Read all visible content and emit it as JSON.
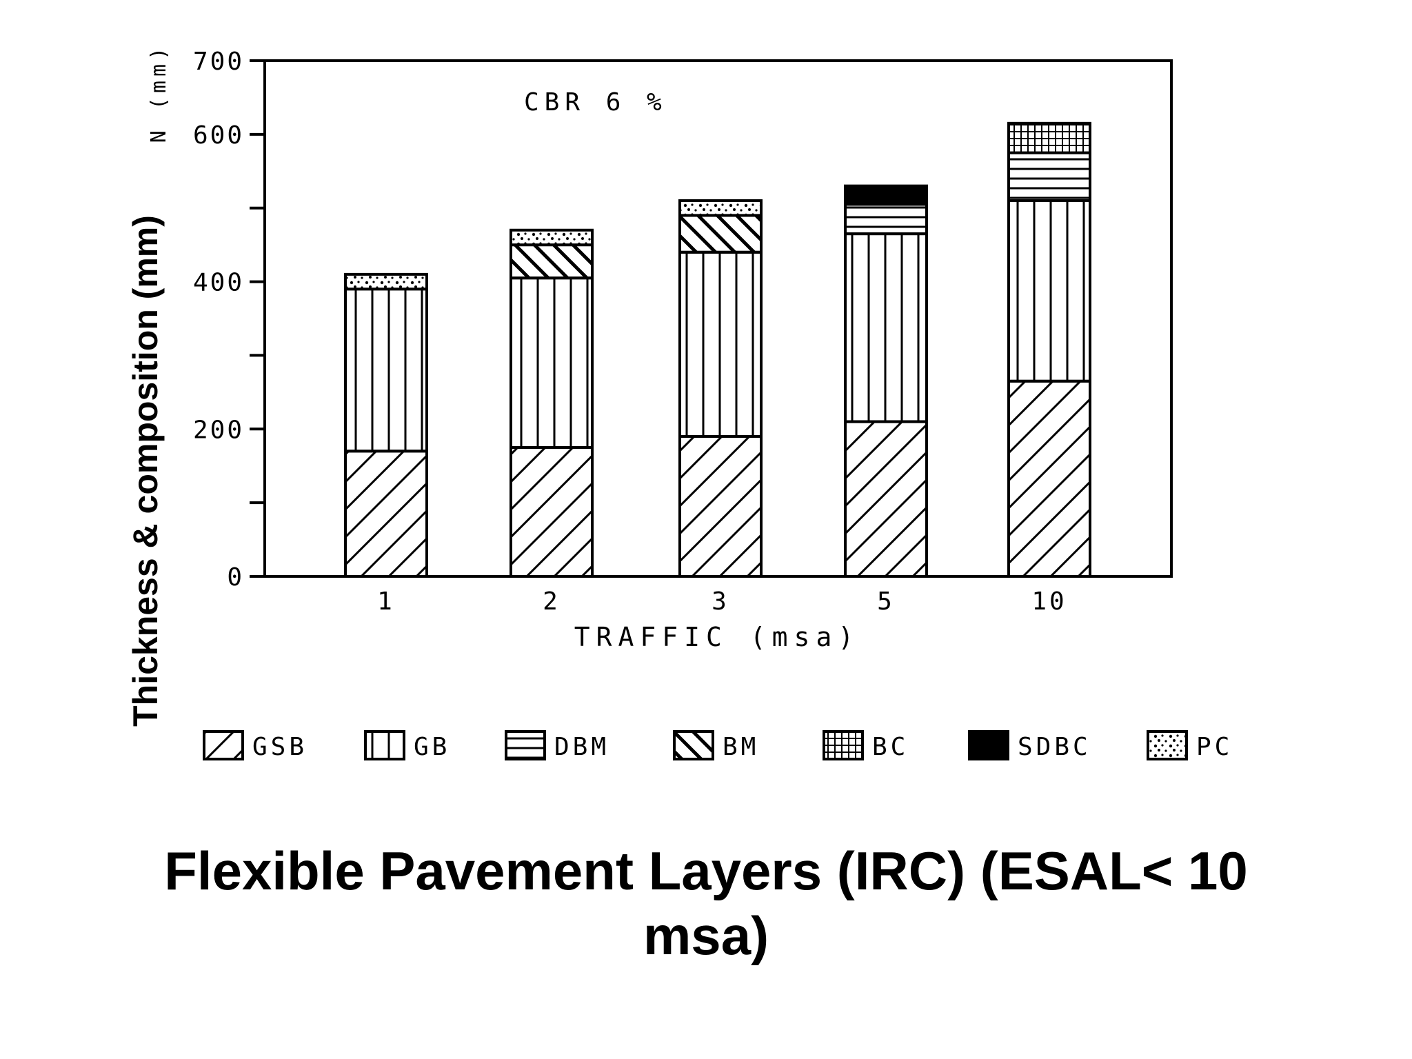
{
  "caption": {
    "line1": "Flexible Pavement Layers (IRC) (ESAL< 10",
    "line2": "msa)"
  },
  "chart_data": {
    "type": "bar",
    "stacked": true,
    "annotation": "CBR 6 %",
    "ylabel": "Thickness & composition (mm)",
    "ylabel_top": "N (mm)",
    "xlabel": "TRAFFIC (msa)",
    "categories": [
      "1",
      "2",
      "3",
      "5",
      "10"
    ],
    "y_ticks": [
      "0",
      "200",
      "400",
      "600",
      "700"
    ],
    "ylim": [
      0,
      700
    ],
    "legend_position": "bottom",
    "legend": [
      "GSB",
      "GB",
      "DBM",
      "BM",
      "BC",
      "SDBC",
      "PC"
    ],
    "series": [
      {
        "name": "GSB",
        "pattern": "diagonal-hatch",
        "values": [
          170,
          175,
          190,
          210,
          265
        ]
      },
      {
        "name": "GB",
        "pattern": "vertical-lines",
        "values": [
          220,
          230,
          250,
          255,
          245
        ]
      },
      {
        "name": "DBM",
        "pattern": "horizontal-lines",
        "values": [
          0,
          0,
          0,
          40,
          65
        ]
      },
      {
        "name": "BM",
        "pattern": "back-diagonal-hatch",
        "values": [
          0,
          45,
          50,
          0,
          0
        ]
      },
      {
        "name": "BC",
        "pattern": "grid",
        "values": [
          0,
          0,
          0,
          0,
          40
        ]
      },
      {
        "name": "SDBC",
        "pattern": "solid",
        "values": [
          0,
          0,
          0,
          25,
          0
        ]
      },
      {
        "name": "PC",
        "pattern": "speckle",
        "values": [
          20,
          20,
          20,
          0,
          0
        ]
      }
    ],
    "colors": {
      "ink": "#000000",
      "background": "#ffffff"
    }
  }
}
